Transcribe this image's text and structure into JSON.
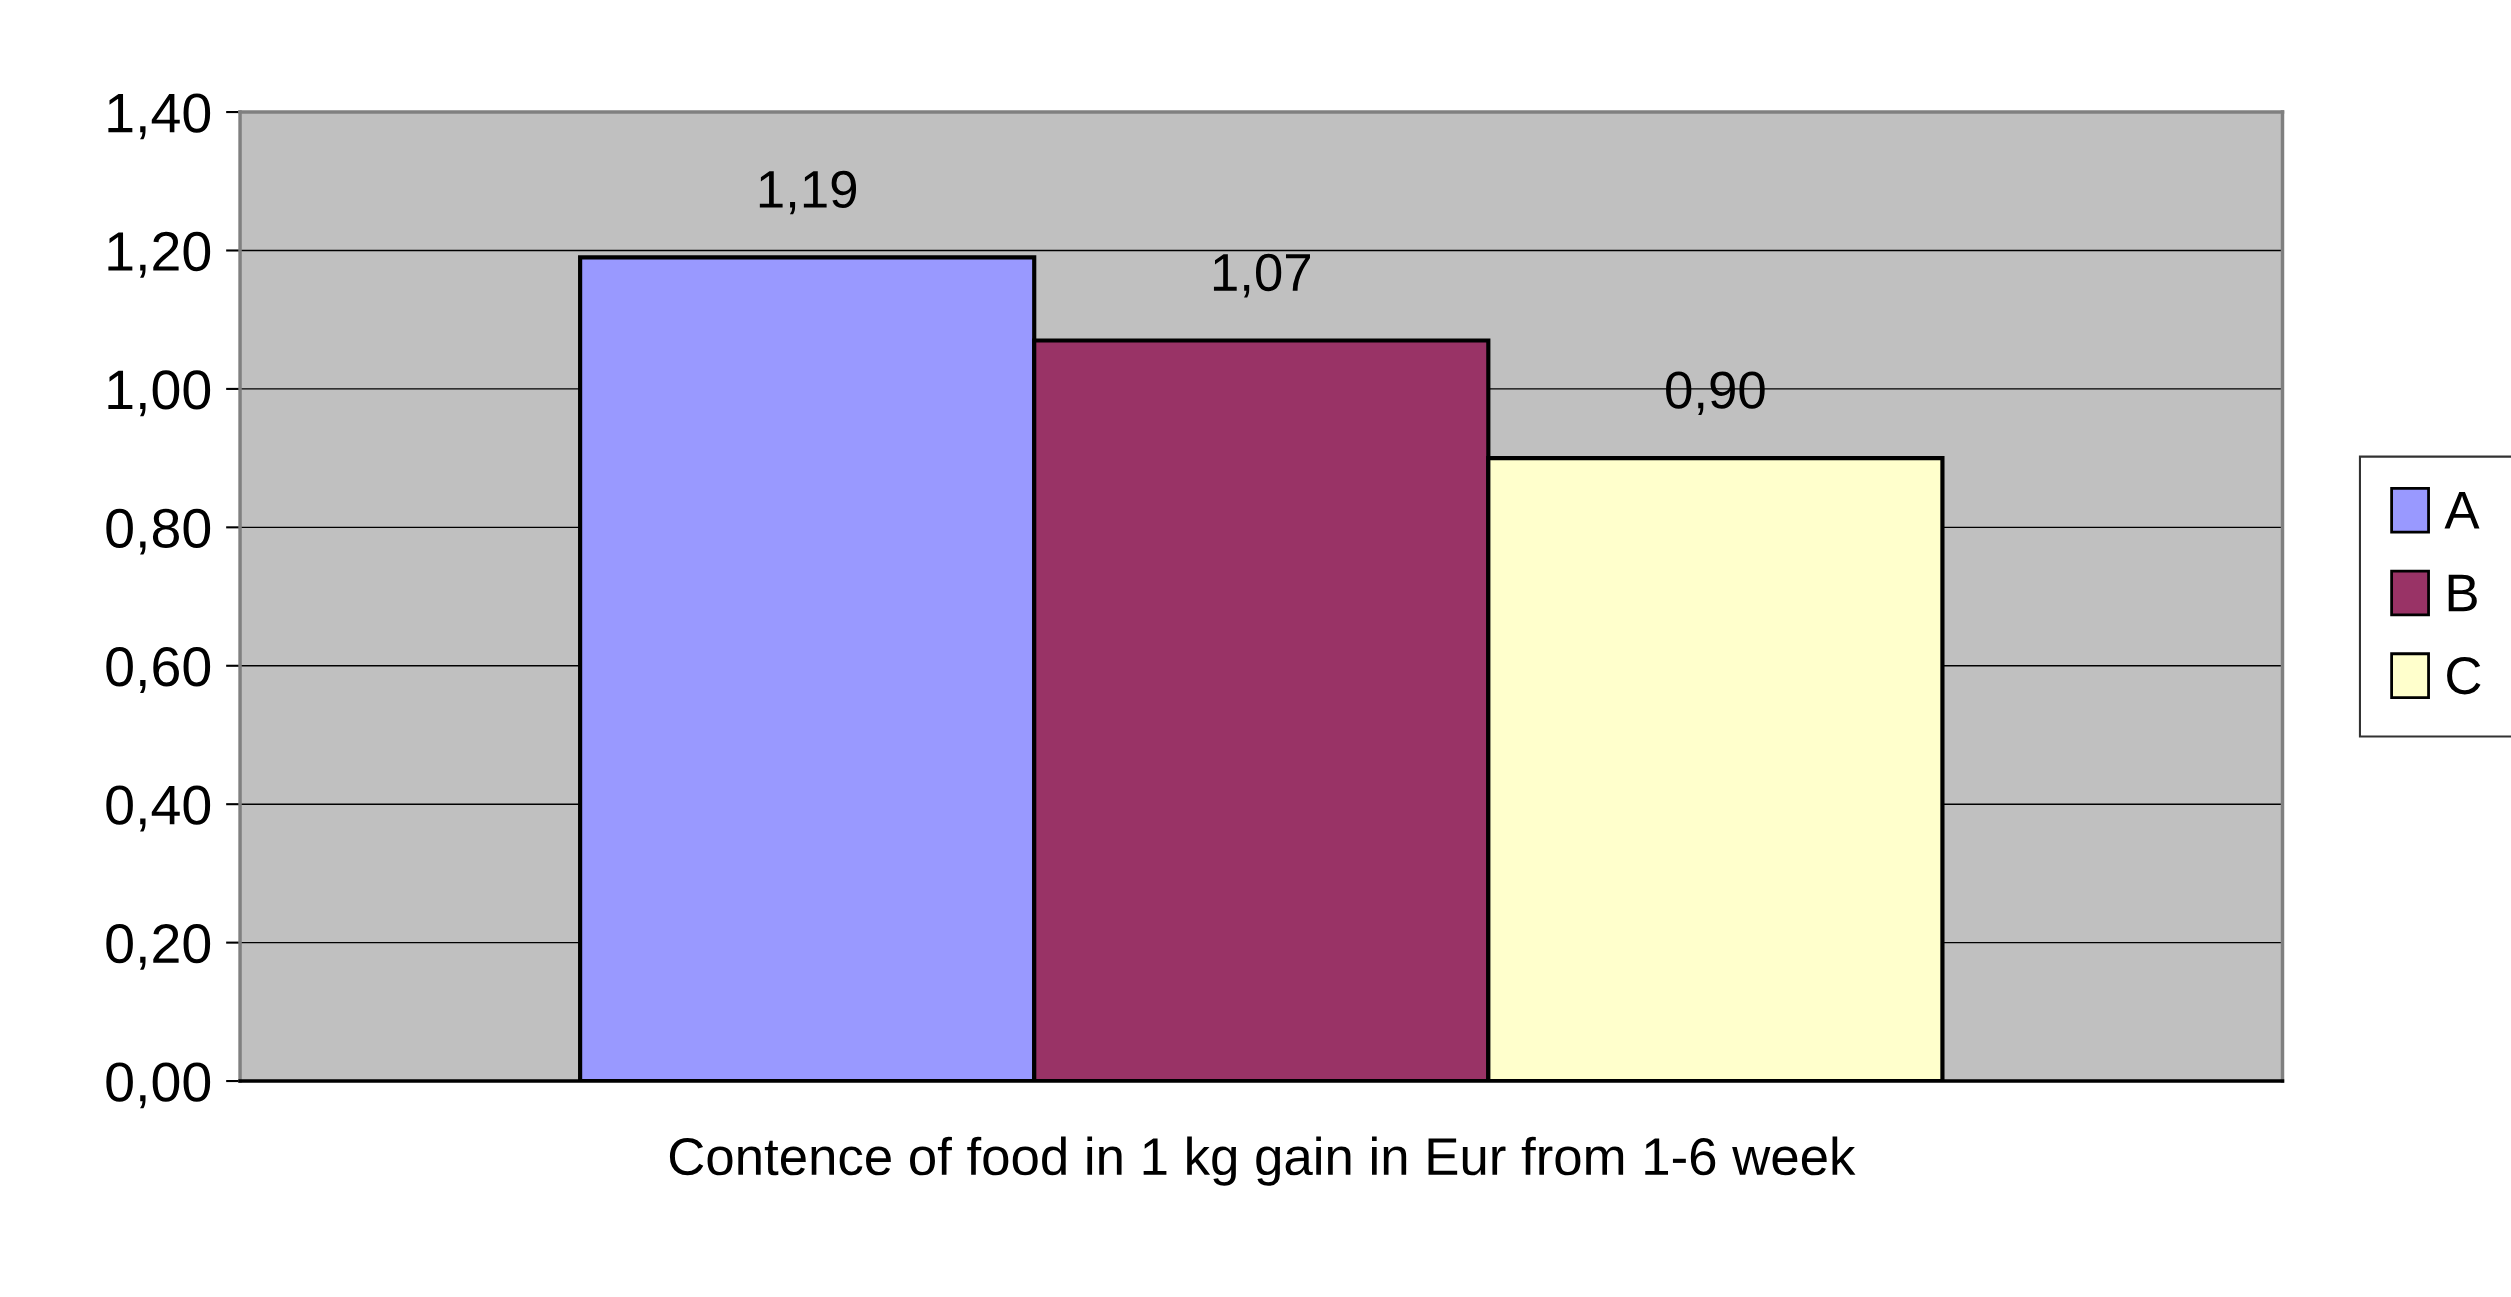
{
  "chart_data": {
    "type": "bar",
    "categories": [
      "Contence of food in 1 kg gain in Eur from 1-6 week"
    ],
    "series": [
      {
        "name": "A",
        "color": "#9999ff",
        "values": [
          1.19
        ],
        "value_labels": [
          "1,19"
        ]
      },
      {
        "name": "B",
        "color": "#993366",
        "values": [
          1.07
        ],
        "value_labels": [
          "1,07"
        ]
      },
      {
        "name": "C",
        "color": "#ffffcc",
        "values": [
          0.9
        ],
        "value_labels": [
          "0,90"
        ]
      }
    ],
    "ylim": [
      0,
      1.4
    ],
    "yticks": [
      {
        "value": 0,
        "label": "0,00"
      },
      {
        "value": 0.2,
        "label": "0,20"
      },
      {
        "value": 0.4,
        "label": "0,40"
      },
      {
        "value": 0.6,
        "label": "0,60"
      },
      {
        "value": 0.8,
        "label": "0,80"
      },
      {
        "value": 1.0,
        "label": "1,00"
      },
      {
        "value": 1.2,
        "label": "1,20"
      },
      {
        "value": 1.4,
        "label": "1,40"
      }
    ],
    "grid": "y",
    "legend": "right"
  }
}
